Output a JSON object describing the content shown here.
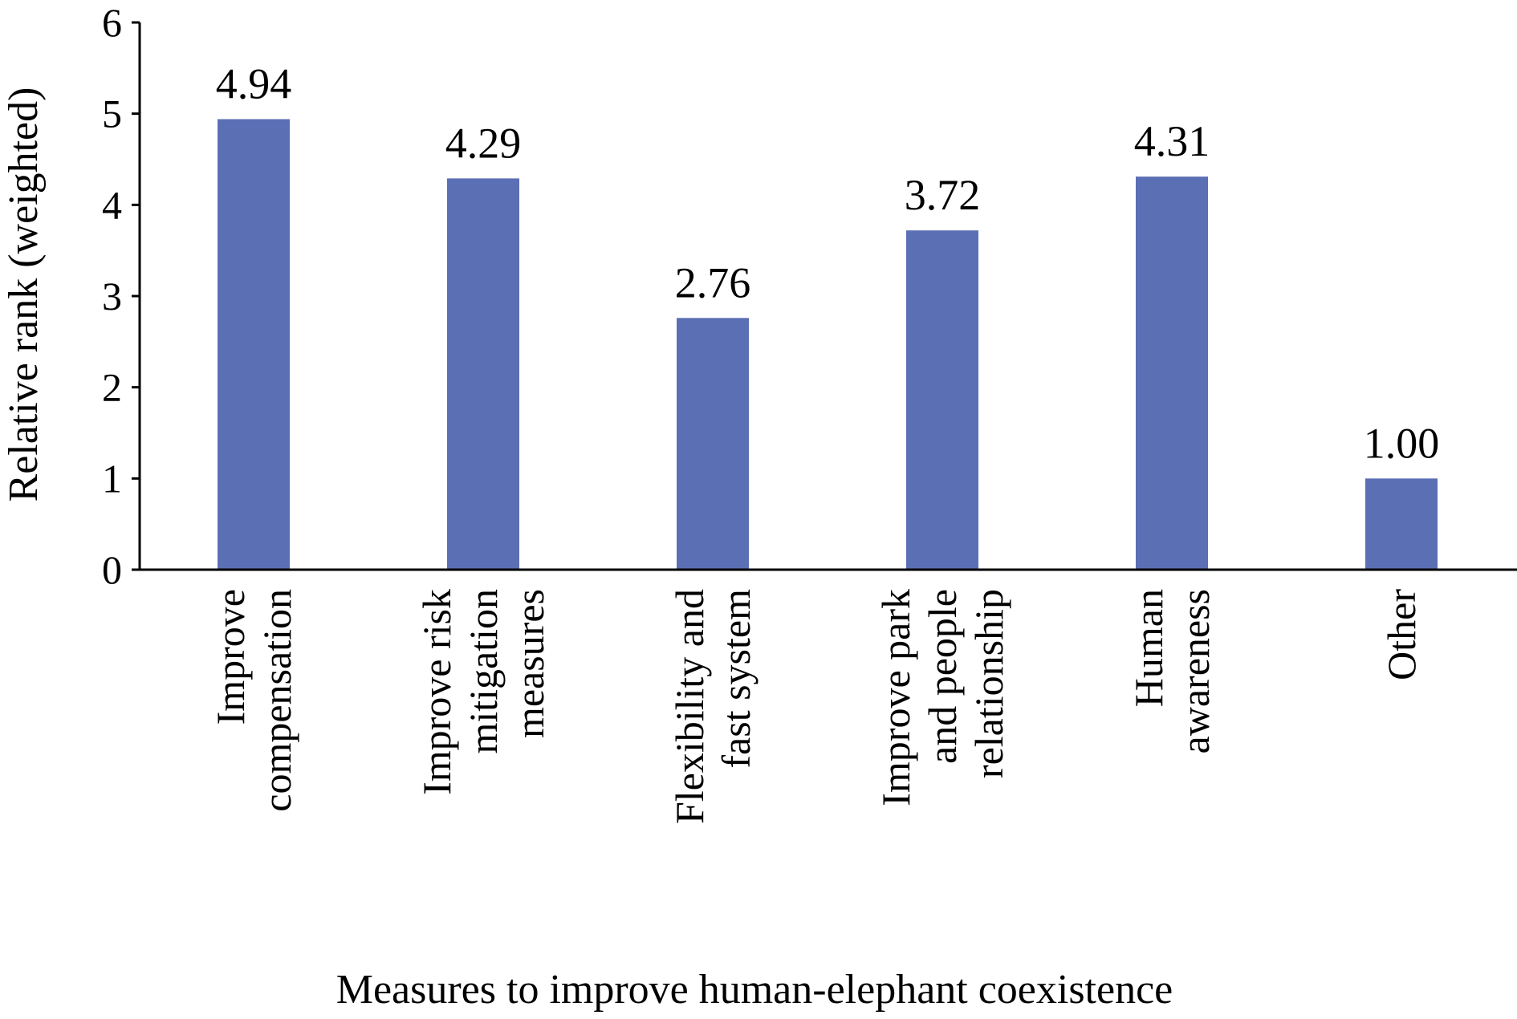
{
  "chart_data": {
    "type": "bar",
    "categories": [
      [
        "Improve",
        "compensation"
      ],
      [
        "Improve risk",
        "mitigation",
        "measures"
      ],
      [
        "Flexibility and",
        "fast system"
      ],
      [
        "Improve park",
        "and people",
        "relationship"
      ],
      [
        "Human",
        "awareness"
      ],
      [
        "Other"
      ]
    ],
    "values": [
      4.94,
      4.29,
      2.76,
      3.72,
      4.31,
      1.0
    ],
    "data_labels": [
      "4.94",
      "4.29",
      "2.76",
      "3.72",
      "4.31",
      "1.00"
    ],
    "xlabel": "Measures to improve human-elephant coexistence",
    "ylabel": "Relative rank (weighted)",
    "ylim": [
      0,
      6
    ],
    "yticks": [
      "0",
      "1",
      "2",
      "3",
      "4",
      "5",
      "6"
    ],
    "grid": false,
    "legend": "none",
    "colors": {
      "bar": "#5b6fb5",
      "axis": "#000000"
    }
  }
}
